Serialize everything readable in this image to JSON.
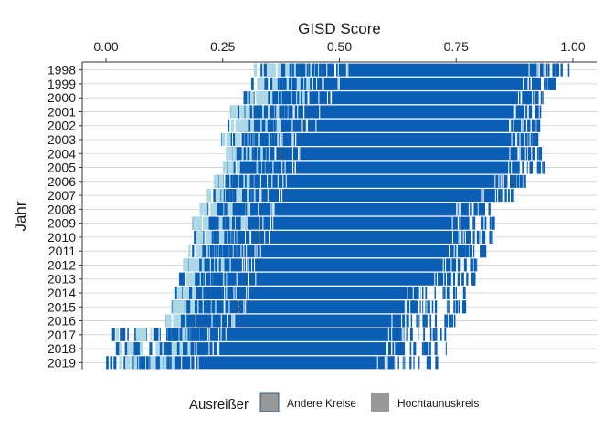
{
  "chart_data": {
    "type": "strip",
    "title": "",
    "xlabel": "GISD Score",
    "ylabel": "Jahr",
    "x_axis_position": "top",
    "xlim": [
      0,
      1
    ],
    "x_ticks": [
      0,
      0.25,
      0.5,
      0.75,
      1
    ],
    "x_tick_labels": [
      "0.00",
      "0.25",
      "0.50",
      "0.75",
      "1.00"
    ],
    "y_axis_reversed": true,
    "categories": [
      "1998",
      "1999",
      "2000",
      "2001",
      "2002",
      "2003",
      "2004",
      "2005",
      "2006",
      "2007",
      "2008",
      "2009",
      "2010",
      "2011",
      "2012",
      "2013",
      "2014",
      "2015",
      "2016",
      "2017",
      "2018",
      "2019"
    ],
    "distributions": [
      {
        "year": "1998",
        "min": 0.315,
        "q1": 0.38,
        "dense_from": 0.46,
        "dense_to": 0.94,
        "max": 0.99
      },
      {
        "year": "1999",
        "min": 0.31,
        "q1": 0.36,
        "dense_from": 0.44,
        "dense_to": 0.93,
        "max": 0.96
      },
      {
        "year": "2000",
        "min": 0.29,
        "q1": 0.34,
        "dense_from": 0.43,
        "dense_to": 0.92,
        "max": 0.94
      },
      {
        "year": "2001",
        "min": 0.265,
        "q1": 0.31,
        "dense_from": 0.4,
        "dense_to": 0.91,
        "max": 0.93
      },
      {
        "year": "2002",
        "min": 0.26,
        "q1": 0.3,
        "dense_from": 0.39,
        "dense_to": 0.9,
        "max": 0.93
      },
      {
        "year": "2003",
        "min": 0.245,
        "q1": 0.29,
        "dense_from": 0.37,
        "dense_to": 0.9,
        "max": 0.93
      },
      {
        "year": "2004",
        "min": 0.255,
        "q1": 0.28,
        "dense_from": 0.36,
        "dense_to": 0.9,
        "max": 0.93
      },
      {
        "year": "2005",
        "min": 0.25,
        "q1": 0.285,
        "dense_from": 0.35,
        "dense_to": 0.89,
        "max": 0.94
      },
      {
        "year": "2006",
        "min": 0.23,
        "q1": 0.26,
        "dense_from": 0.33,
        "dense_to": 0.86,
        "max": 0.9
      },
      {
        "year": "2007",
        "min": 0.215,
        "q1": 0.24,
        "dense_from": 0.32,
        "dense_to": 0.84,
        "max": 0.87
      },
      {
        "year": "2008",
        "min": 0.2,
        "q1": 0.225,
        "dense_from": 0.31,
        "dense_to": 0.78,
        "max": 0.82
      },
      {
        "year": "2009",
        "min": 0.185,
        "q1": 0.215,
        "dense_from": 0.3,
        "dense_to": 0.78,
        "max": 0.83
      },
      {
        "year": "2010",
        "min": 0.185,
        "q1": 0.215,
        "dense_from": 0.29,
        "dense_to": 0.78,
        "max": 0.83
      },
      {
        "year": "2011",
        "min": 0.175,
        "q1": 0.205,
        "dense_from": 0.28,
        "dense_to": 0.77,
        "max": 0.82
      },
      {
        "year": "2012",
        "min": 0.165,
        "q1": 0.195,
        "dense_from": 0.27,
        "dense_to": 0.76,
        "max": 0.8
      },
      {
        "year": "2013",
        "min": 0.155,
        "q1": 0.185,
        "dense_from": 0.26,
        "dense_to": 0.74,
        "max": 0.79
      },
      {
        "year": "2014",
        "min": 0.145,
        "q1": 0.175,
        "dense_from": 0.25,
        "dense_to": 0.68,
        "max": 0.77
      },
      {
        "year": "2015",
        "min": 0.14,
        "q1": 0.165,
        "dense_from": 0.24,
        "dense_to": 0.67,
        "max": 0.77
      },
      {
        "year": "2016",
        "min": 0.125,
        "q1": 0.155,
        "dense_from": 0.22,
        "dense_to": 0.65,
        "max": 0.75
      },
      {
        "year": "2017",
        "min": 0.01,
        "q1": 0.13,
        "dense_from": 0.2,
        "dense_to": 0.64,
        "max": 0.73
      },
      {
        "year": "2018",
        "min": 0.02,
        "q1": 0.12,
        "dense_from": 0.19,
        "dense_to": 0.64,
        "max": 0.73
      },
      {
        "year": "2019",
        "min": 0.0,
        "q1": 0.06,
        "dense_from": 0.15,
        "dense_to": 0.62,
        "max": 0.72
      }
    ],
    "series": [
      {
        "name": "Andere Kreise",
        "color": "#0a5fb4"
      },
      {
        "name": "Hochtaunuskreis",
        "color": "#add8e6"
      }
    ],
    "legend": {
      "position": "bottom",
      "title": "Ausreißer",
      "items": [
        "Andere Kreise",
        "Hochtaunuskreis"
      ],
      "key_color": "#999999",
      "key_border_color": "#2a5c8a"
    },
    "grid": {
      "horizontal": true,
      "vertical": false,
      "color": "#cfcfcf"
    }
  }
}
